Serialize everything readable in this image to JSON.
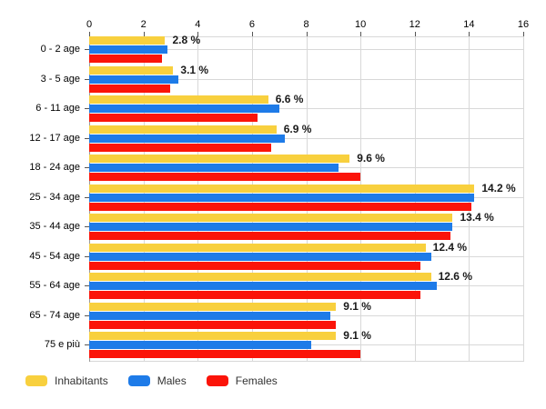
{
  "chart_data": {
    "type": "bar",
    "orientation": "horizontal",
    "title": "",
    "categories": [
      "0 - 2 age",
      "3 - 5 age",
      "6 - 11 age",
      "12 - 17 age",
      "18 - 24 age",
      "25 - 34 age",
      "35 - 44 age",
      "45 - 54 age",
      "55 - 64 age",
      "65 - 74 age",
      "75 e più"
    ],
    "series": [
      {
        "name": "Inhabitants",
        "color": "#F8D03E",
        "values": [
          2.8,
          3.1,
          6.6,
          6.9,
          9.6,
          14.2,
          13.4,
          12.4,
          12.6,
          9.1,
          9.1
        ]
      },
      {
        "name": "Males",
        "color": "#1E7BE8",
        "values": [
          2.9,
          3.3,
          7.0,
          7.2,
          9.2,
          14.2,
          13.4,
          12.6,
          12.8,
          8.9,
          8.2
        ]
      },
      {
        "name": "Females",
        "color": "#FB1409",
        "values": [
          2.7,
          3.0,
          6.2,
          6.7,
          10.0,
          14.1,
          13.3,
          12.2,
          12.2,
          9.1,
          10.0
        ]
      }
    ],
    "data_labels": [
      "2.8 %",
      "3.1 %",
      "6.6 %",
      "6.9 %",
      "9.6 %",
      "14.2 %",
      "13.4 %",
      "12.4 %",
      "12.6 %",
      "9.1 %",
      "9.1 %"
    ],
    "xlim": [
      0,
      16
    ],
    "x_ticks": [
      0,
      2,
      4,
      6,
      8,
      10,
      12,
      14,
      16
    ],
    "xlabel": "",
    "ylabel": "",
    "axis_position": "top",
    "grid": true,
    "legend_position": "bottom",
    "colors": {
      "gridline": "#d8d8d8",
      "axis_line": "#9a9a9a",
      "tick": "#555555",
      "axis_text": "#000000",
      "data_label_text": "#1a1a1a",
      "legend_text": "#333333",
      "background": "#ffffff"
    }
  }
}
